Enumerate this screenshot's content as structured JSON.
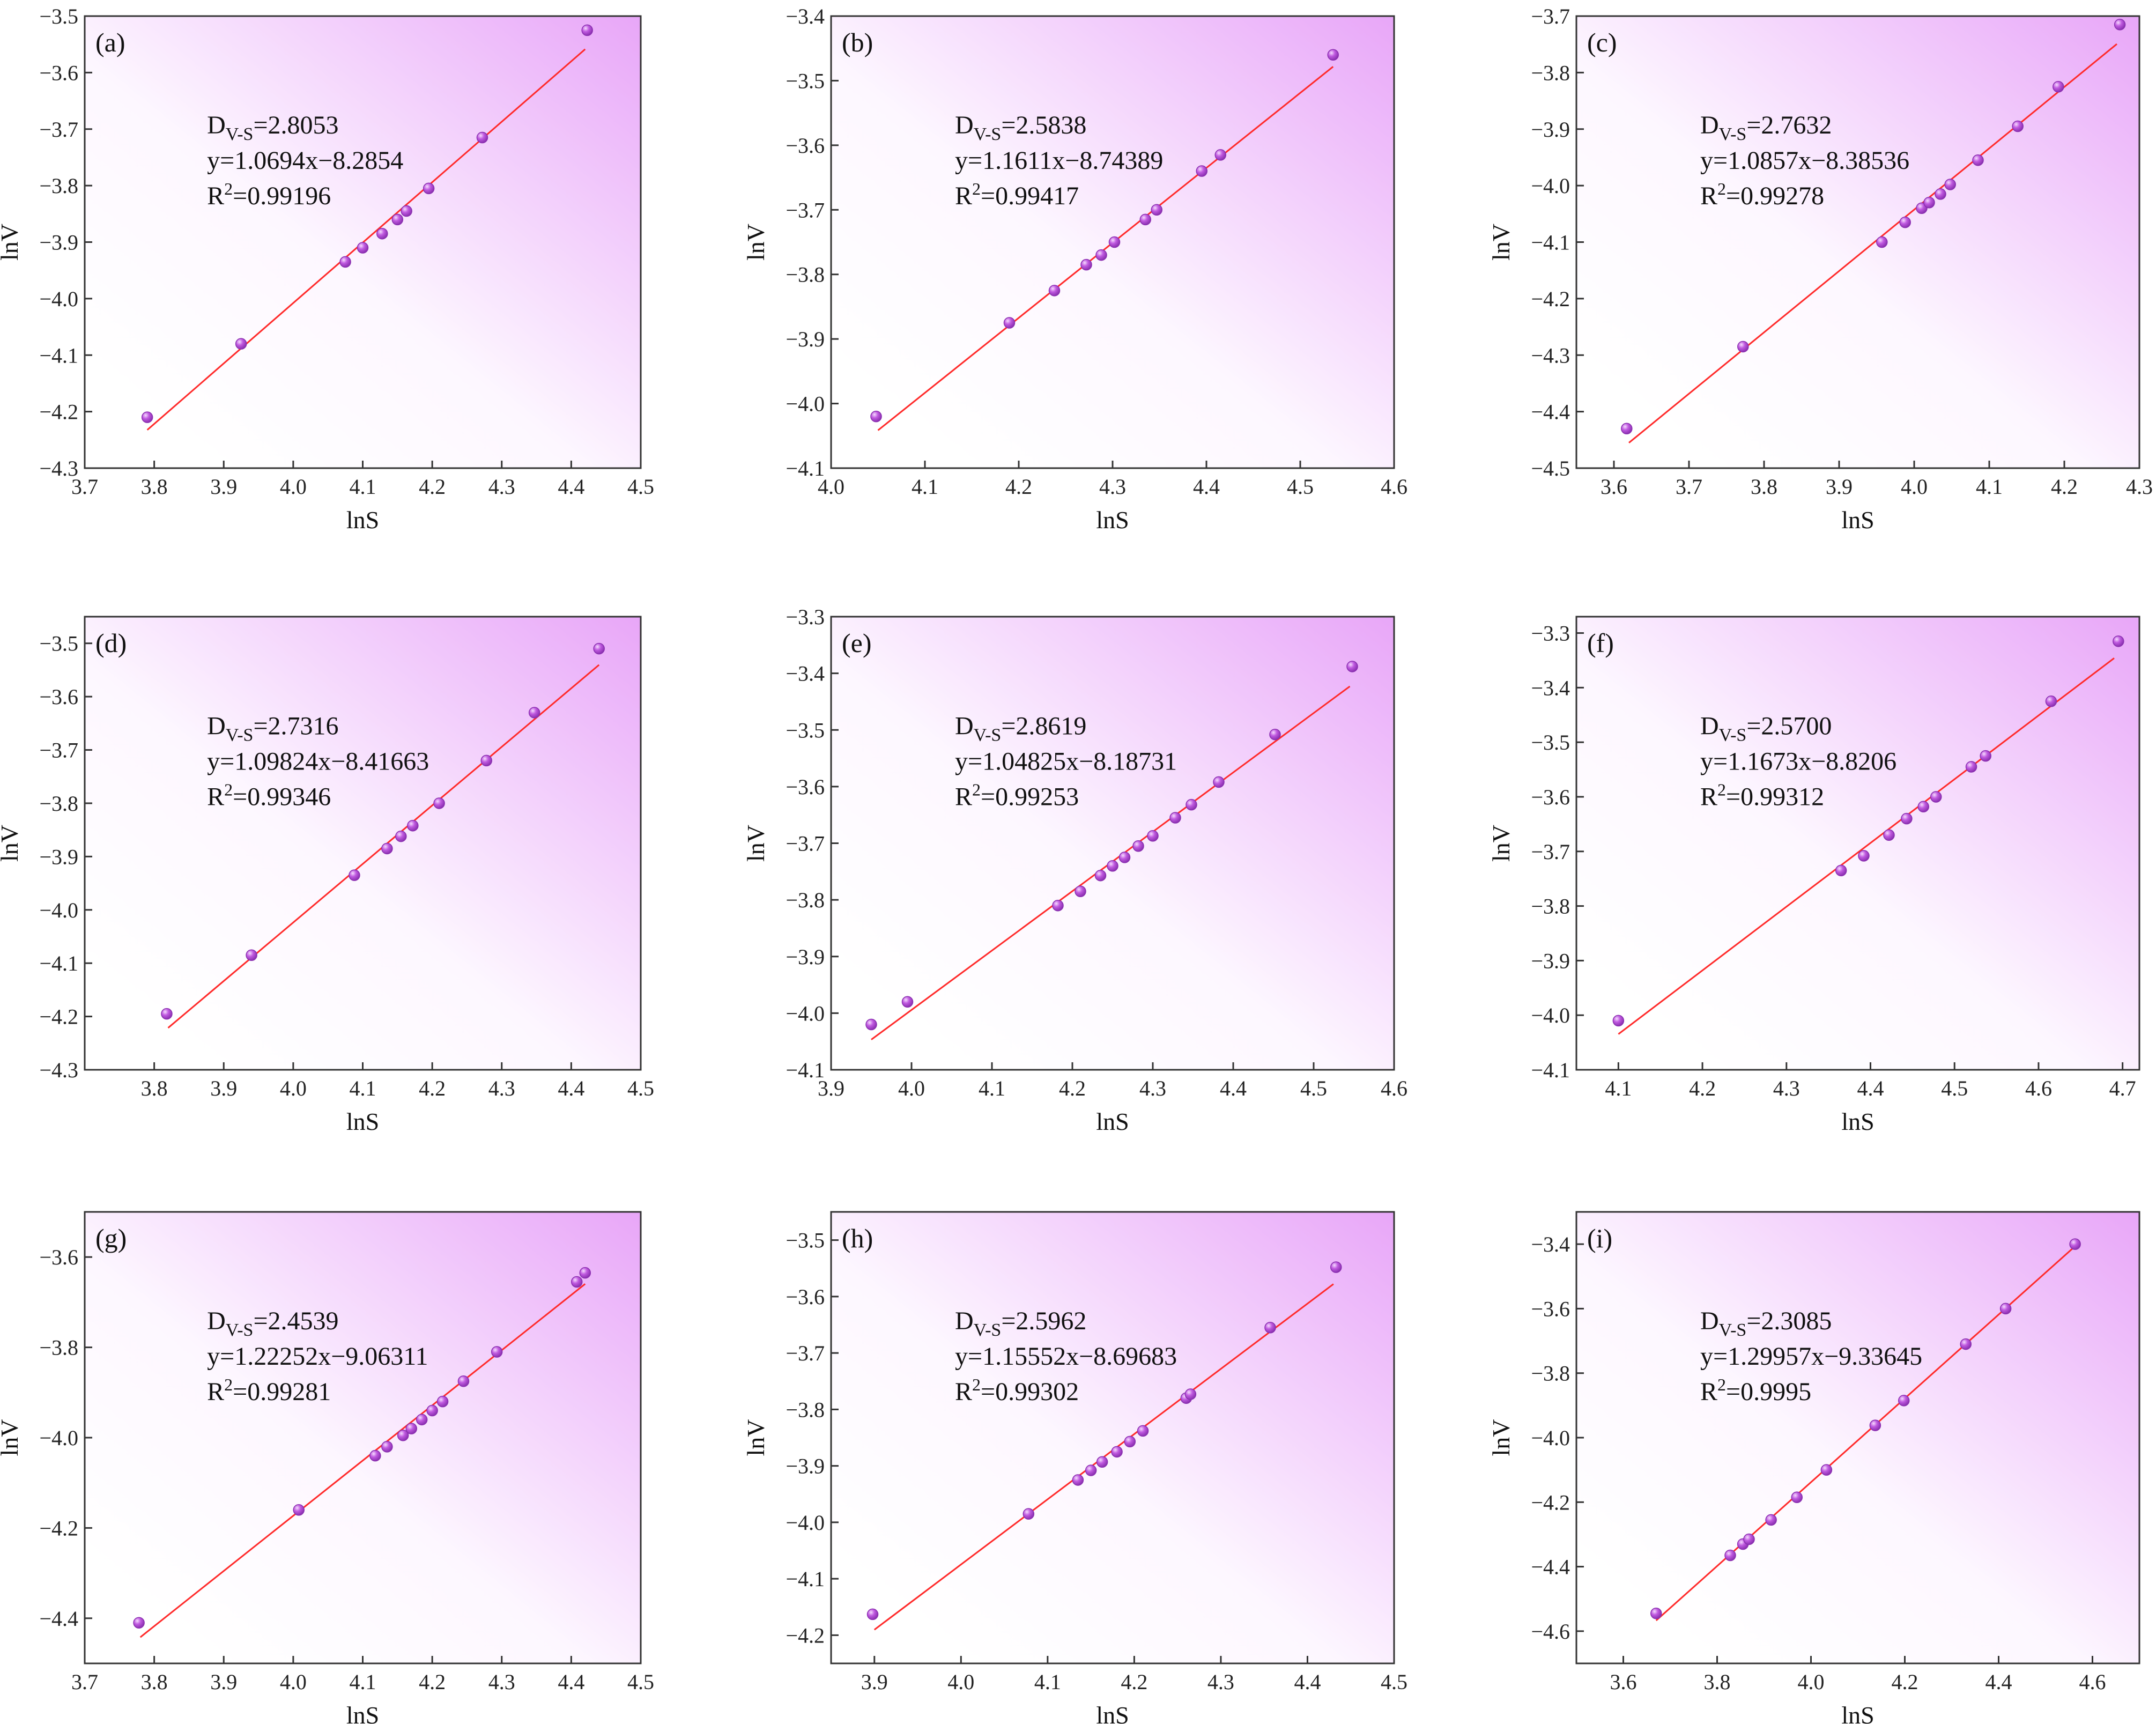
{
  "colors": {
    "fit_line": "#ff2a2a",
    "marker_fill": "#c05ae0",
    "marker_highlight": "#f6dcff",
    "marker_stroke": "#8a2fb0",
    "gradient_light": "#fdf7ff",
    "gradient_dark": "#e8a6f8",
    "axis": "#333333"
  },
  "chart_data": [
    {
      "type": "scatter",
      "panel_label": "(a)",
      "xlabel": "lnS",
      "ylabel": "lnV",
      "xlim": [
        3.7,
        4.5
      ],
      "ylim": [
        -4.3,
        -3.5
      ],
      "xticks": [
        "3.7",
        "3.8",
        "3.9",
        "4.0",
        "4.1",
        "4.2",
        "4.3",
        "4.4",
        "4.5"
      ],
      "yticks": [
        "-4.3",
        "-4.2",
        "-4.1",
        "-4.0",
        "-3.9",
        "-3.8",
        "-3.7",
        "-3.6",
        "-3.5"
      ],
      "points": [
        [
          3.79,
          -4.21
        ],
        [
          3.925,
          -4.08
        ],
        [
          4.075,
          -3.935
        ],
        [
          4.1,
          -3.91
        ],
        [
          4.128,
          -3.885
        ],
        [
          4.15,
          -3.86
        ],
        [
          4.163,
          -3.845
        ],
        [
          4.195,
          -3.805
        ],
        [
          4.272,
          -3.715
        ],
        [
          4.423,
          -3.525
        ]
      ],
      "fit": {
        "slope": 1.0694,
        "intercept": -8.2854,
        "x_range": [
          3.79,
          4.42
        ]
      },
      "annotation": {
        "D_label": "D",
        "D_sub": "V-S",
        "D_value": "=2.8053",
        "eq": "y=1.0694x−8.2854",
        "r2_label": "R",
        "r2_sup": "2",
        "r2_value": "=0.99196"
      }
    },
    {
      "type": "scatter",
      "panel_label": "(b)",
      "xlabel": "lnS",
      "ylabel": "lnV",
      "xlim": [
        4.0,
        4.6
      ],
      "ylim": [
        -4.1,
        -3.4
      ],
      "xticks": [
        "4.0",
        "4.1",
        "4.2",
        "4.3",
        "4.4",
        "4.5",
        "4.6"
      ],
      "yticks": [
        "-4.1",
        "-4.0",
        "-3.9",
        "-3.8",
        "-3.7",
        "-3.6",
        "-3.5",
        "-3.4"
      ],
      "points": [
        [
          4.048,
          -4.02
        ],
        [
          4.19,
          -3.875
        ],
        [
          4.238,
          -3.825
        ],
        [
          4.272,
          -3.785
        ],
        [
          4.288,
          -3.77
        ],
        [
          4.302,
          -3.75
        ],
        [
          4.335,
          -3.715
        ],
        [
          4.347,
          -3.7
        ],
        [
          4.395,
          -3.64
        ],
        [
          4.415,
          -3.615
        ],
        [
          4.535,
          -3.46
        ]
      ],
      "fit": {
        "slope": 1.1611,
        "intercept": -8.74389,
        "x_range": [
          4.05,
          4.535
        ]
      },
      "annotation": {
        "D_label": "D",
        "D_sub": "V-S",
        "D_value": "=2.5838",
        "eq": "y=1.1611x−8.74389",
        "r2_label": "R",
        "r2_sup": "2",
        "r2_value": "=0.99417"
      }
    },
    {
      "type": "scatter",
      "panel_label": "(c)",
      "xlabel": "lnS",
      "ylabel": "lnV",
      "xlim": [
        3.55,
        4.3
      ],
      "ylim": [
        -4.5,
        -3.7
      ],
      "xticks": [
        "3.6",
        "3.7",
        "3.8",
        "3.9",
        "4.0",
        "4.1",
        "4.2",
        "4.3"
      ],
      "yticks": [
        "-4.5",
        "-4.4",
        "-4.3",
        "-4.2",
        "-4.1",
        "-4.0",
        "-3.9",
        "-3.8",
        "-3.7"
      ],
      "points": [
        [
          3.617,
          -4.43
        ],
        [
          3.772,
          -4.285
        ],
        [
          3.957,
          -4.1
        ],
        [
          3.988,
          -4.065
        ],
        [
          4.01,
          -4.04
        ],
        [
          4.02,
          -4.03
        ],
        [
          4.035,
          -4.015
        ],
        [
          4.048,
          -3.998
        ],
        [
          4.085,
          -3.955
        ],
        [
          4.138,
          -3.895
        ],
        [
          4.192,
          -3.825
        ],
        [
          4.274,
          -3.715
        ]
      ],
      "fit": {
        "slope": 1.0857,
        "intercept": -8.38536,
        "x_range": [
          3.62,
          4.27
        ]
      },
      "annotation": {
        "D_label": "D",
        "D_sub": "V-S",
        "D_value": "=2.7632",
        "eq": "y=1.0857x−8.38536",
        "r2_label": "R",
        "r2_sup": "2",
        "r2_value": "=0.99278"
      }
    },
    {
      "type": "scatter",
      "panel_label": "(d)",
      "xlabel": "lnS",
      "ylabel": "lnV",
      "xlim": [
        3.7,
        4.5
      ],
      "ylim": [
        -4.3,
        -3.45
      ],
      "xticks": [
        "3.8",
        "3.9",
        "4.0",
        "4.1",
        "4.2",
        "4.3",
        "4.4",
        "4.5"
      ],
      "yticks": [
        "-4.3",
        "-4.2",
        "-4.1",
        "-4.0",
        "-3.9",
        "-3.8",
        "-3.7",
        "-3.6",
        "-3.5"
      ],
      "points": [
        [
          3.818,
          -4.195
        ],
        [
          3.94,
          -4.085
        ],
        [
          4.088,
          -3.935
        ],
        [
          4.135,
          -3.885
        ],
        [
          4.155,
          -3.862
        ],
        [
          4.172,
          -3.842
        ],
        [
          4.21,
          -3.8
        ],
        [
          4.278,
          -3.72
        ],
        [
          4.347,
          -3.63
        ],
        [
          4.44,
          -3.51
        ]
      ],
      "fit": {
        "slope": 1.09824,
        "intercept": -8.41663,
        "x_range": [
          3.82,
          4.44
        ]
      },
      "annotation": {
        "D_label": "D",
        "D_sub": "V-S",
        "D_value": "=2.7316",
        "eq": "y=1.09824x−8.41663",
        "r2_label": "R",
        "r2_sup": "2",
        "r2_value": "=0.99346"
      }
    },
    {
      "type": "scatter",
      "panel_label": "(e)",
      "xlabel": "lnS",
      "ylabel": "lnV",
      "xlim": [
        3.9,
        4.6
      ],
      "ylim": [
        -4.1,
        -3.3
      ],
      "xticks": [
        "3.9",
        "4.0",
        "4.1",
        "4.2",
        "4.3",
        "4.4",
        "4.5",
        "4.6"
      ],
      "yticks": [
        "-4.1",
        "-4.0",
        "-3.9",
        "-3.8",
        "-3.7",
        "-3.6",
        "-3.5",
        "-3.4",
        "-3.3"
      ],
      "points": [
        [
          3.95,
          -4.02
        ],
        [
          3.995,
          -3.98
        ],
        [
          4.182,
          -3.81
        ],
        [
          4.21,
          -3.785
        ],
        [
          4.235,
          -3.757
        ],
        [
          4.25,
          -3.74
        ],
        [
          4.265,
          -3.725
        ],
        [
          4.282,
          -3.705
        ],
        [
          4.3,
          -3.687
        ],
        [
          4.328,
          -3.655
        ],
        [
          4.348,
          -3.632
        ],
        [
          4.382,
          -3.592
        ],
        [
          4.452,
          -3.508
        ],
        [
          4.548,
          -3.388
        ]
      ],
      "fit": {
        "slope": 1.04825,
        "intercept": -8.18731,
        "x_range": [
          3.95,
          4.545
        ]
      },
      "annotation": {
        "D_label": "D",
        "D_sub": "V-S",
        "D_value": "=2.8619",
        "eq": "y=1.04825x−8.18731",
        "r2_label": "R",
        "r2_sup": "2",
        "r2_value": "=0.99253"
      }
    },
    {
      "type": "scatter",
      "panel_label": "(f)",
      "xlabel": "lnS",
      "ylabel": "lnV",
      "xlim": [
        4.05,
        4.72
      ],
      "ylim": [
        -4.1,
        -3.27
      ],
      "xticks": [
        "4.1",
        "4.2",
        "4.3",
        "4.4",
        "4.5",
        "4.6",
        "4.7"
      ],
      "yticks": [
        "-4.1",
        "-4.0",
        "-3.9",
        "-3.8",
        "-3.7",
        "-3.6",
        "-3.5",
        "-3.4",
        "-3.3"
      ],
      "points": [
        [
          4.1,
          -4.01
        ],
        [
          4.365,
          -3.735
        ],
        [
          4.392,
          -3.708
        ],
        [
          4.422,
          -3.67
        ],
        [
          4.443,
          -3.64
        ],
        [
          4.463,
          -3.618
        ],
        [
          4.478,
          -3.6
        ],
        [
          4.52,
          -3.545
        ],
        [
          4.537,
          -3.525
        ],
        [
          4.615,
          -3.425
        ],
        [
          4.695,
          -3.315
        ]
      ],
      "fit": {
        "slope": 1.1673,
        "intercept": -8.8206,
        "x_range": [
          4.1,
          4.69
        ]
      },
      "annotation": {
        "D_label": "D",
        "D_sub": "V-S",
        "D_value": "=2.5700",
        "eq": "y=1.1673x−8.8206",
        "r2_label": "R",
        "r2_sup": "2",
        "r2_value": "=0.99312"
      }
    },
    {
      "type": "scatter",
      "panel_label": "(g)",
      "xlabel": "lnS",
      "ylabel": "lnV",
      "xlim": [
        3.7,
        4.5
      ],
      "ylim": [
        -4.5,
        -3.5
      ],
      "xticks": [
        "3.7",
        "3.8",
        "3.9",
        "4.0",
        "4.1",
        "4.2",
        "4.3",
        "4.4",
        "4.5"
      ],
      "yticks": [
        "-4.4",
        "-4.2",
        "-4.0",
        "-3.8",
        "-3.6"
      ],
      "points": [
        [
          3.778,
          -4.41
        ],
        [
          4.008,
          -4.16
        ],
        [
          4.118,
          -4.04
        ],
        [
          4.135,
          -4.02
        ],
        [
          4.158,
          -3.995
        ],
        [
          4.17,
          -3.98
        ],
        [
          4.185,
          -3.96
        ],
        [
          4.2,
          -3.94
        ],
        [
          4.215,
          -3.92
        ],
        [
          4.245,
          -3.875
        ],
        [
          4.293,
          -3.81
        ],
        [
          4.408,
          -3.655
        ],
        [
          4.42,
          -3.635
        ]
      ],
      "fit": {
        "slope": 1.22252,
        "intercept": -9.06311,
        "x_range": [
          3.78,
          4.42
        ]
      },
      "annotation": {
        "D_label": "D",
        "D_sub": "V-S",
        "D_value": "=2.4539",
        "eq": "y=1.22252x−9.06311",
        "r2_label": "R",
        "r2_sup": "2",
        "r2_value": "=0.99281"
      }
    },
    {
      "type": "scatter",
      "panel_label": "(h)",
      "xlabel": "lnS",
      "ylabel": "lnV",
      "xlim": [
        3.85,
        4.5
      ],
      "ylim": [
        -4.25,
        -3.45
      ],
      "xticks": [
        "3.9",
        "4.0",
        "4.1",
        "4.2",
        "4.3",
        "4.4",
        "4.5"
      ],
      "yticks": [
        "-4.2",
        "-4.1",
        "-4.0",
        "-3.9",
        "-3.8",
        "-3.7",
        "-3.6",
        "-3.5"
      ],
      "points": [
        [
          3.898,
          -4.163
        ],
        [
          4.078,
          -3.985
        ],
        [
          4.135,
          -3.925
        ],
        [
          4.15,
          -3.908
        ],
        [
          4.163,
          -3.893
        ],
        [
          4.18,
          -3.875
        ],
        [
          4.195,
          -3.857
        ],
        [
          4.21,
          -3.838
        ],
        [
          4.26,
          -3.78
        ],
        [
          4.265,
          -3.773
        ],
        [
          4.357,
          -3.655
        ],
        [
          4.433,
          -3.548
        ]
      ],
      "fit": {
        "slope": 1.15552,
        "intercept": -8.69683,
        "x_range": [
          3.9,
          4.43
        ]
      },
      "annotation": {
        "D_label": "D",
        "D_sub": "V-S",
        "D_value": "=2.5962",
        "eq": "y=1.15552x−8.69683",
        "r2_label": "R",
        "r2_sup": "2",
        "r2_value": "=0.99302"
      }
    },
    {
      "type": "scatter",
      "panel_label": "(i)",
      "xlabel": "lnS",
      "ylabel": "lnV",
      "xlim": [
        3.5,
        4.7
      ],
      "ylim": [
        -4.7,
        -3.3
      ],
      "xticks": [
        "3.6",
        "3.8",
        "4.0",
        "4.2",
        "4.4",
        "4.6"
      ],
      "yticks": [
        "-4.6",
        "-4.4",
        "-4.2",
        "-4.0",
        "-3.8",
        "-3.6",
        "-3.4"
      ],
      "points": [
        [
          3.67,
          -4.545
        ],
        [
          3.828,
          -4.365
        ],
        [
          3.855,
          -4.33
        ],
        [
          3.868,
          -4.315
        ],
        [
          3.915,
          -4.255
        ],
        [
          3.97,
          -4.185
        ],
        [
          4.033,
          -4.1
        ],
        [
          4.137,
          -3.962
        ],
        [
          4.198,
          -3.885
        ],
        [
          4.33,
          -3.71
        ],
        [
          4.415,
          -3.6
        ],
        [
          4.563,
          -3.4
        ]
      ],
      "fit": {
        "slope": 1.29957,
        "intercept": -9.33645,
        "x_range": [
          3.67,
          4.56
        ]
      },
      "annotation": {
        "D_label": "D",
        "D_sub": "V-S",
        "D_value": "=2.3085",
        "eq": "y=1.29957x−9.33645",
        "r2_label": "R",
        "r2_sup": "2",
        "r2_value": "=0.9995"
      }
    }
  ]
}
